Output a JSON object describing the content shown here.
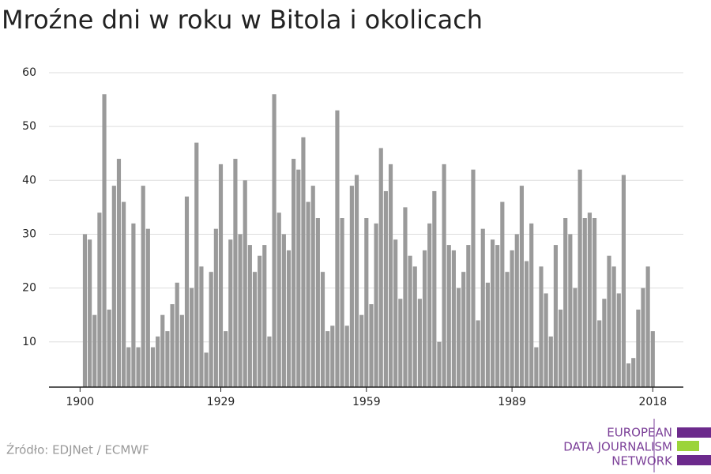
{
  "chart_data": {
    "type": "bar",
    "title": "Mroźne dni w roku w Bitola i okolicach",
    "source": "Źródło: EDJNet / ECMWF",
    "color": "#9a9a9a",
    "x": [
      1901,
      1902,
      1903,
      1904,
      1905,
      1906,
      1907,
      1908,
      1909,
      1910,
      1911,
      1912,
      1913,
      1914,
      1915,
      1916,
      1917,
      1918,
      1919,
      1920,
      1921,
      1922,
      1923,
      1924,
      1925,
      1926,
      1927,
      1928,
      1929,
      1930,
      1931,
      1932,
      1933,
      1934,
      1935,
      1936,
      1937,
      1938,
      1939,
      1940,
      1941,
      1942,
      1943,
      1944,
      1945,
      1946,
      1947,
      1948,
      1949,
      1950,
      1951,
      1952,
      1953,
      1954,
      1955,
      1956,
      1957,
      1958,
      1959,
      1960,
      1961,
      1962,
      1963,
      1964,
      1965,
      1966,
      1967,
      1968,
      1969,
      1970,
      1971,
      1972,
      1973,
      1974,
      1975,
      1976,
      1977,
      1978,
      1979,
      1980,
      1981,
      1982,
      1983,
      1984,
      1985,
      1986,
      1987,
      1988,
      1989,
      1990,
      1991,
      1992,
      1993,
      1994,
      1995,
      1996,
      1997,
      1998,
      1999,
      2000,
      2001,
      2002,
      2003,
      2004,
      2005,
      2006,
      2007,
      2008,
      2009,
      2010,
      2011,
      2012,
      2013,
      2014,
      2015,
      2016,
      2017,
      2018
    ],
    "values": [
      30,
      29,
      15,
      34,
      56,
      16,
      39,
      44,
      36,
      9,
      32,
      9,
      39,
      31,
      9,
      11,
      15,
      12,
      17,
      21,
      15,
      37,
      20,
      47,
      24,
      8,
      23,
      31,
      43,
      12,
      29,
      44,
      30,
      40,
      28,
      23,
      26,
      28,
      11,
      56,
      34,
      30,
      27,
      44,
      42,
      48,
      36,
      39,
      33,
      23,
      12,
      13,
      53,
      33,
      13,
      39,
      41,
      15,
      33,
      17,
      32,
      46,
      38,
      43,
      29,
      18,
      35,
      26,
      24,
      18,
      27,
      32,
      38,
      10,
      43,
      28,
      27,
      20,
      23,
      28,
      42,
      14,
      31,
      21,
      29,
      28,
      36,
      23,
      27,
      30,
      39,
      25,
      32,
      9,
      24,
      19,
      11,
      28,
      16,
      33,
      30,
      20,
      42,
      33,
      34,
      33,
      14,
      18,
      26,
      24,
      19,
      41,
      6,
      7,
      16,
      20,
      24,
      12
    ],
    "xlim": [
      1893.6,
      2024.3
    ],
    "xticks": [
      1900,
      1929,
      1959,
      1989,
      2018
    ],
    "ylim": [
      1.6,
      60
    ],
    "yticks": [
      10,
      20,
      30,
      40,
      50,
      60
    ],
    "grid": true
  },
  "logo": {
    "lines": [
      "EUROPEAN",
      "DATA JOURNALISM",
      "NETWORK"
    ]
  }
}
